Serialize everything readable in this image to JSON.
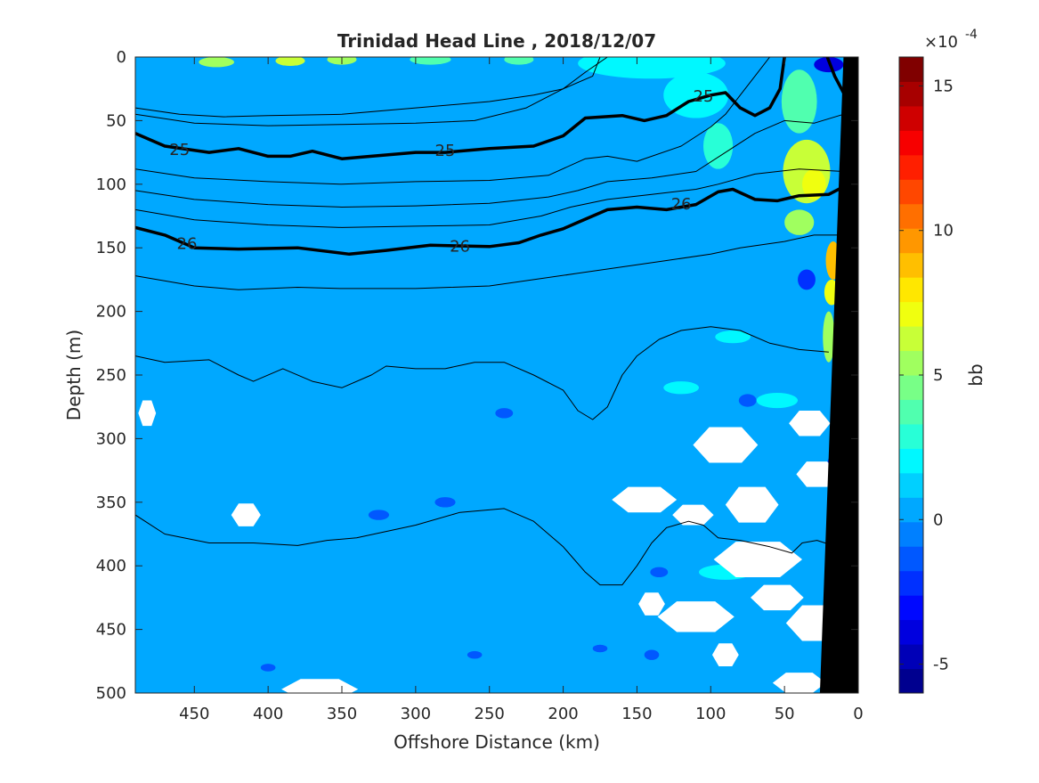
{
  "chart_data": {
    "type": "heatmap",
    "title": "Trinidad Head Line , 2018/12/07",
    "xlabel": "Offshore Distance (km)",
    "ylabel": "Depth (m)",
    "xlim": [
      490,
      0
    ],
    "ylim": [
      500,
      0
    ],
    "x_direction": "reversed",
    "y_direction": "reversed",
    "x_ticks": [
      "450",
      "400",
      "350",
      "300",
      "250",
      "200",
      "150",
      "100",
      "50",
      "0"
    ],
    "x_tick_values": [
      450,
      400,
      350,
      300,
      250,
      200,
      150,
      100,
      50,
      0
    ],
    "y_ticks": [
      "0",
      "50",
      "100",
      "150",
      "200",
      "250",
      "300",
      "350",
      "400",
      "450",
      "500"
    ],
    "y_tick_values": [
      0,
      50,
      100,
      150,
      200,
      250,
      300,
      350,
      400,
      450,
      500
    ],
    "field_background_value": 0.5,
    "colorbar": {
      "label": "bb",
      "exponent_label": "×10",
      "exponent_power": "-4",
      "range": [
        -6,
        16
      ],
      "ticks": [
        "-5",
        "0",
        "5",
        "10",
        "15"
      ],
      "tick_values": [
        -5,
        0,
        5,
        10,
        15
      ],
      "colors": [
        "#00008f",
        "#0000b7",
        "#0000df",
        "#0008ff",
        "#0030ff",
        "#0058ff",
        "#0080ff",
        "#00a8ff",
        "#00d0ff",
        "#00f8ff",
        "#28ffd7",
        "#50ffaf",
        "#78ff87",
        "#a0ff5f",
        "#c8ff37",
        "#f0ff0f",
        "#ffe700",
        "#ffbf00",
        "#ff9700",
        "#ff6f00",
        "#ff4700",
        "#ff1f00",
        "#f70000",
        "#cf0000",
        "#a70000",
        "#800000"
      ]
    },
    "density_contours": [
      {
        "label": "25",
        "bold": true,
        "points": [
          [
            490,
            60
          ],
          [
            470,
            70
          ],
          [
            440,
            75
          ],
          [
            420,
            72
          ],
          [
            400,
            78
          ],
          [
            385,
            78
          ],
          [
            370,
            74
          ],
          [
            350,
            80
          ],
          [
            330,
            78
          ],
          [
            300,
            75
          ],
          [
            280,
            75
          ],
          [
            250,
            72
          ],
          [
            220,
            70
          ],
          [
            200,
            62
          ],
          [
            185,
            48
          ],
          [
            160,
            46
          ],
          [
            145,
            50
          ],
          [
            130,
            46
          ],
          [
            115,
            35
          ],
          [
            100,
            30
          ],
          [
            90,
            28
          ],
          [
            80,
            40
          ],
          [
            70,
            46
          ],
          [
            60,
            40
          ],
          [
            53,
            25
          ],
          [
            50,
            0
          ]
        ]
      },
      {
        "label": "",
        "bold": true,
        "points": [
          [
            21,
            0
          ],
          [
            16,
            15
          ],
          [
            10,
            28
          ]
        ]
      },
      {
        "label": "26",
        "bold": true,
        "points": [
          [
            490,
            134
          ],
          [
            470,
            140
          ],
          [
            450,
            150
          ],
          [
            420,
            151
          ],
          [
            380,
            150
          ],
          [
            345,
            155
          ],
          [
            320,
            152
          ],
          [
            290,
            148
          ],
          [
            250,
            149
          ],
          [
            230,
            146
          ],
          [
            215,
            140
          ],
          [
            200,
            135
          ],
          [
            190,
            130
          ],
          [
            170,
            120
          ],
          [
            150,
            118
          ],
          [
            130,
            120
          ],
          [
            110,
            116
          ],
          [
            95,
            106
          ],
          [
            85,
            104
          ],
          [
            70,
            112
          ],
          [
            55,
            113
          ],
          [
            40,
            109
          ],
          [
            20,
            108
          ],
          [
            10,
            102
          ]
        ]
      },
      {
        "label": "",
        "bold": false,
        "points": [
          [
            490,
            40
          ],
          [
            460,
            45
          ],
          [
            430,
            47
          ],
          [
            400,
            46
          ],
          [
            350,
            45
          ],
          [
            300,
            40
          ],
          [
            250,
            35
          ],
          [
            220,
            30
          ],
          [
            200,
            25
          ],
          [
            180,
            15
          ],
          [
            175,
            0
          ]
        ]
      },
      {
        "label": "",
        "bold": false,
        "points": [
          [
            490,
            45
          ],
          [
            450,
            52
          ],
          [
            400,
            54
          ],
          [
            350,
            53
          ],
          [
            300,
            52
          ],
          [
            260,
            50
          ],
          [
            225,
            40
          ],
          [
            200,
            25
          ],
          [
            185,
            12
          ],
          [
            170,
            0
          ]
        ]
      },
      {
        "label": "",
        "bold": false,
        "points": [
          [
            490,
            88
          ],
          [
            450,
            95
          ],
          [
            400,
            98
          ],
          [
            350,
            100
          ],
          [
            300,
            98
          ],
          [
            250,
            97
          ],
          [
            210,
            93
          ],
          [
            185,
            80
          ],
          [
            170,
            78
          ],
          [
            150,
            82
          ],
          [
            120,
            70
          ],
          [
            100,
            55
          ],
          [
            90,
            45
          ],
          [
            80,
            30
          ],
          [
            70,
            15
          ],
          [
            60,
            0
          ]
        ]
      },
      {
        "label": "",
        "bold": false,
        "points": [
          [
            490,
            105
          ],
          [
            450,
            112
          ],
          [
            400,
            116
          ],
          [
            350,
            118
          ],
          [
            300,
            117
          ],
          [
            250,
            115
          ],
          [
            210,
            110
          ],
          [
            190,
            105
          ],
          [
            170,
            98
          ],
          [
            140,
            95
          ],
          [
            110,
            90
          ],
          [
            90,
            75
          ],
          [
            70,
            60
          ],
          [
            50,
            50
          ],
          [
            30,
            52
          ],
          [
            10,
            45
          ]
        ]
      },
      {
        "label": "",
        "bold": false,
        "points": [
          [
            490,
            120
          ],
          [
            450,
            128
          ],
          [
            400,
            132
          ],
          [
            350,
            134
          ],
          [
            300,
            133
          ],
          [
            250,
            132
          ],
          [
            215,
            125
          ],
          [
            195,
            118
          ],
          [
            170,
            112
          ],
          [
            140,
            108
          ],
          [
            110,
            104
          ],
          [
            95,
            100
          ],
          [
            70,
            92
          ],
          [
            40,
            88
          ],
          [
            10,
            90
          ]
        ]
      },
      {
        "label": "",
        "bold": false,
        "points": [
          [
            490,
            172
          ],
          [
            450,
            180
          ],
          [
            420,
            183
          ],
          [
            380,
            181
          ],
          [
            350,
            182
          ],
          [
            300,
            182
          ],
          [
            250,
            180
          ],
          [
            220,
            175
          ],
          [
            190,
            170
          ],
          [
            160,
            165
          ],
          [
            130,
            160
          ],
          [
            100,
            155
          ],
          [
            80,
            150
          ],
          [
            50,
            145
          ],
          [
            30,
            140
          ],
          [
            10,
            140
          ]
        ]
      },
      {
        "label": "",
        "bold": false,
        "points": [
          [
            490,
            235
          ],
          [
            470,
            240
          ],
          [
            440,
            238
          ],
          [
            420,
            250
          ],
          [
            410,
            255
          ],
          [
            390,
            245
          ],
          [
            370,
            255
          ],
          [
            350,
            260
          ],
          [
            330,
            250
          ],
          [
            320,
            243
          ],
          [
            300,
            245
          ],
          [
            280,
            245
          ],
          [
            260,
            240
          ],
          [
            240,
            240
          ],
          [
            220,
            250
          ],
          [
            200,
            262
          ],
          [
            190,
            278
          ],
          [
            180,
            285
          ],
          [
            170,
            275
          ],
          [
            160,
            250
          ],
          [
            150,
            235
          ],
          [
            135,
            222
          ],
          [
            120,
            215
          ],
          [
            100,
            212
          ],
          [
            80,
            215
          ],
          [
            60,
            225
          ],
          [
            40,
            230
          ],
          [
            20,
            232
          ]
        ]
      },
      {
        "label": "",
        "bold": false,
        "points": [
          [
            490,
            360
          ],
          [
            470,
            375
          ],
          [
            440,
            382
          ],
          [
            410,
            382
          ],
          [
            380,
            384
          ],
          [
            360,
            380
          ],
          [
            340,
            378
          ],
          [
            300,
            368
          ],
          [
            270,
            358
          ],
          [
            240,
            355
          ],
          [
            220,
            365
          ],
          [
            200,
            385
          ],
          [
            185,
            405
          ],
          [
            175,
            415
          ],
          [
            160,
            415
          ],
          [
            150,
            400
          ],
          [
            140,
            382
          ],
          [
            130,
            370
          ],
          [
            115,
            365
          ],
          [
            105,
            368
          ],
          [
            95,
            378
          ],
          [
            80,
            380
          ],
          [
            60,
            385
          ],
          [
            45,
            390
          ],
          [
            38,
            382
          ],
          [
            28,
            380
          ],
          [
            20,
            383
          ]
        ]
      }
    ],
    "white_patches": [
      {
        "x": 482,
        "y": 280,
        "rx": 6,
        "ry": 10
      },
      {
        "x": 415,
        "y": 360,
        "rx": 10,
        "ry": 9
      },
      {
        "x": 365,
        "y": 497,
        "rx": 26,
        "ry": 8
      },
      {
        "x": 90,
        "y": 305,
        "rx": 22,
        "ry": 14
      },
      {
        "x": 33,
        "y": 288,
        "rx": 14,
        "ry": 10
      },
      {
        "x": 28,
        "y": 328,
        "rx": 14,
        "ry": 10
      },
      {
        "x": 145,
        "y": 348,
        "rx": 22,
        "ry": 10
      },
      {
        "x": 112,
        "y": 360,
        "rx": 14,
        "ry": 8
      },
      {
        "x": 72,
        "y": 352,
        "rx": 18,
        "ry": 14
      },
      {
        "x": 68,
        "y": 395,
        "rx": 30,
        "ry": 14
      },
      {
        "x": 140,
        "y": 430,
        "rx": 9,
        "ry": 9
      },
      {
        "x": 110,
        "y": 440,
        "rx": 26,
        "ry": 12
      },
      {
        "x": 55,
        "y": 425,
        "rx": 18,
        "ry": 10
      },
      {
        "x": 27,
        "y": 445,
        "rx": 22,
        "ry": 14
      },
      {
        "x": 90,
        "y": 470,
        "rx": 9,
        "ry": 9
      },
      {
        "x": 40,
        "y": 492,
        "rx": 18,
        "ry": 8
      }
    ],
    "color_blobs": [
      {
        "x": 435,
        "y": 4,
        "rx": 12,
        "ry": 4,
        "v": 5
      },
      {
        "x": 385,
        "y": 3,
        "rx": 10,
        "ry": 4,
        "v": 6
      },
      {
        "x": 350,
        "y": 2,
        "rx": 10,
        "ry": 4,
        "v": 5
      },
      {
        "x": 290,
        "y": 2,
        "rx": 14,
        "ry": 4,
        "v": 4
      },
      {
        "x": 230,
        "y": 2,
        "rx": 10,
        "ry": 4,
        "v": 4
      },
      {
        "x": 140,
        "y": 5,
        "rx": 50,
        "ry": 12,
        "v": 2
      },
      {
        "x": 110,
        "y": 30,
        "rx": 22,
        "ry": 18,
        "v": 2
      },
      {
        "x": 95,
        "y": 70,
        "rx": 10,
        "ry": 18,
        "v": 3
      },
      {
        "x": 40,
        "y": 35,
        "rx": 12,
        "ry": 25,
        "v": 4
      },
      {
        "x": 35,
        "y": 90,
        "rx": 16,
        "ry": 25,
        "v": 6
      },
      {
        "x": 30,
        "y": 100,
        "rx": 8,
        "ry": 12,
        "v": 7
      },
      {
        "x": 40,
        "y": 130,
        "rx": 10,
        "ry": 10,
        "v": 5
      },
      {
        "x": 17,
        "y": 160,
        "rx": 5,
        "ry": 15,
        "v": 9
      },
      {
        "x": 18,
        "y": 185,
        "rx": 5,
        "ry": 10,
        "v": 7
      },
      {
        "x": 20,
        "y": 220,
        "rx": 4,
        "ry": 20,
        "v": 5
      },
      {
        "x": 20,
        "y": 6,
        "rx": 10,
        "ry": 6,
        "v": -4
      },
      {
        "x": 35,
        "y": 175,
        "rx": 6,
        "ry": 8,
        "v": -2
      },
      {
        "x": 85,
        "y": 220,
        "rx": 12,
        "ry": 5,
        "v": 2
      },
      {
        "x": 75,
        "y": 270,
        "rx": 6,
        "ry": 5,
        "v": -1
      },
      {
        "x": 240,
        "y": 280,
        "rx": 6,
        "ry": 4,
        "v": -1
      },
      {
        "x": 280,
        "y": 350,
        "rx": 7,
        "ry": 4,
        "v": -1
      },
      {
        "x": 325,
        "y": 360,
        "rx": 7,
        "ry": 4,
        "v": -1
      },
      {
        "x": 140,
        "y": 470,
        "rx": 5,
        "ry": 4,
        "v": -1
      },
      {
        "x": 175,
        "y": 465,
        "rx": 5,
        "ry": 3,
        "v": -1
      },
      {
        "x": 400,
        "y": 480,
        "rx": 5,
        "ry": 3,
        "v": -1
      },
      {
        "x": 260,
        "y": 470,
        "rx": 5,
        "ry": 3,
        "v": -1
      },
      {
        "x": 135,
        "y": 405,
        "rx": 6,
        "ry": 4,
        "v": -1
      },
      {
        "x": 55,
        "y": 270,
        "rx": 14,
        "ry": 6,
        "v": 2
      },
      {
        "x": 120,
        "y": 260,
        "rx": 12,
        "ry": 5,
        "v": 2
      },
      {
        "x": 90,
        "y": 405,
        "rx": 18,
        "ry": 6,
        "v": 2
      },
      {
        "x": 15,
        "y": 320,
        "rx": 6,
        "ry": 8,
        "v": -2
      },
      {
        "x": 60,
        "y": 390,
        "rx": 10,
        "ry": 6,
        "v": 3
      }
    ],
    "seafloor_polygon": [
      [
        0,
        0
      ],
      [
        0,
        500
      ],
      [
        26,
        500
      ],
      [
        10,
        0
      ]
    ]
  }
}
